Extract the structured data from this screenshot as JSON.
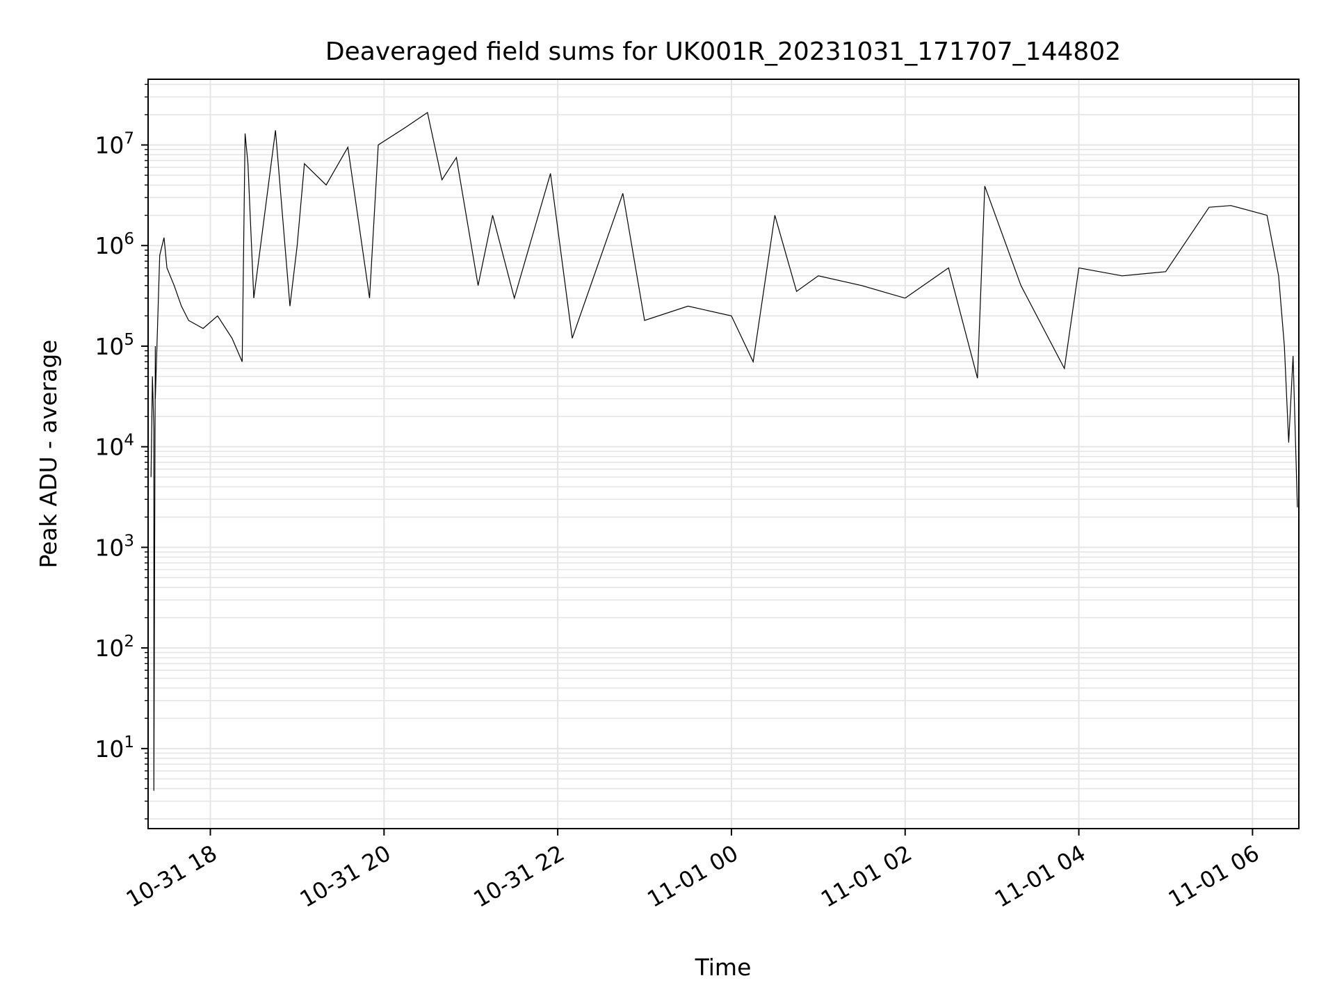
{
  "chart_data": {
    "type": "line",
    "title": "Deaveraged field sums for UK001R_20231031_171707_144802",
    "xlabel": "Time",
    "ylabel": "Peak ADU - average",
    "yscale": "log",
    "xlim": [
      "2023-10-31 17:17",
      "2023-11-01 06:32"
    ],
    "ylim": [
      1.6,
      45000000
    ],
    "x_ticks": [
      "2023-10-31 18:00",
      "2023-10-31 20:00",
      "2023-10-31 22:00",
      "2023-11-01 00:00",
      "2023-11-01 02:00",
      "2023-11-01 04:00",
      "2023-11-01 06:00"
    ],
    "x_tick_labels": [
      "10-31 18",
      "10-31 20",
      "10-31 22",
      "11-01 00",
      "11-01 02",
      "11-01 04",
      "11-01 06"
    ],
    "y_ticks": [
      10,
      100,
      1000,
      10000,
      100000,
      1000000,
      10000000
    ],
    "y_tick_labels": [
      {
        "base": "10",
        "exp": "1"
      },
      {
        "base": "10",
        "exp": "2"
      },
      {
        "base": "10",
        "exp": "3"
      },
      {
        "base": "10",
        "exp": "4"
      },
      {
        "base": "10",
        "exp": "5"
      },
      {
        "base": "10",
        "exp": "6"
      },
      {
        "base": "10",
        "exp": "7"
      }
    ],
    "grid": true,
    "line_color": "#000000",
    "grid_color": "#e5e5e5",
    "series": [
      {
        "points": [
          [
            "2023-10-31 17:19",
            5000
          ],
          [
            "2023-10-31 17:20",
            50000
          ],
          [
            "2023-10-31 17:21",
            15000
          ],
          [
            "2023-10-31 17:21",
            3.8
          ],
          [
            "2023-10-31 17:22",
            100000
          ],
          [
            "2023-10-31 17:22",
            30000
          ],
          [
            "2023-10-31 17:25",
            800000
          ],
          [
            "2023-10-31 17:28",
            1200000
          ],
          [
            "2023-10-31 17:30",
            600000
          ],
          [
            "2023-10-31 17:35",
            400000
          ],
          [
            "2023-10-31 17:40",
            250000
          ],
          [
            "2023-10-31 17:45",
            180000
          ],
          [
            "2023-10-31 17:55",
            150000
          ],
          [
            "2023-10-31 18:05",
            200000
          ],
          [
            "2023-10-31 18:15",
            120000
          ],
          [
            "2023-10-31 18:22",
            70000
          ],
          [
            "2023-10-31 18:24",
            13000000
          ],
          [
            "2023-10-31 18:26",
            6500000
          ],
          [
            "2023-10-31 18:30",
            300000
          ],
          [
            "2023-10-31 18:45",
            14000000
          ],
          [
            "2023-10-31 18:55",
            250000
          ],
          [
            "2023-10-31 19:00",
            1000000
          ],
          [
            "2023-10-31 19:05",
            6500000
          ],
          [
            "2023-10-31 19:20",
            4000000
          ],
          [
            "2023-10-31 19:35",
            9500000
          ],
          [
            "2023-10-31 19:50",
            300000
          ],
          [
            "2023-10-31 19:56",
            10000000
          ],
          [
            "2023-10-31 20:15",
            15000000
          ],
          [
            "2023-10-31 20:30",
            21000000
          ],
          [
            "2023-10-31 20:40",
            4500000
          ],
          [
            "2023-10-31 20:50",
            7500000
          ],
          [
            "2023-10-31 21:05",
            400000
          ],
          [
            "2023-10-31 21:15",
            2000000
          ],
          [
            "2023-10-31 21:30",
            300000
          ],
          [
            "2023-10-31 21:55",
            5200000
          ],
          [
            "2023-10-31 22:10",
            120000
          ],
          [
            "2023-10-31 22:45",
            3300000
          ],
          [
            "2023-10-31 23:00",
            180000
          ],
          [
            "2023-10-31 23:30",
            250000
          ],
          [
            "2023-11-01 00:00",
            200000
          ],
          [
            "2023-11-01 00:15",
            70000
          ],
          [
            "2023-11-01 00:30",
            2000000
          ],
          [
            "2023-11-01 00:45",
            350000
          ],
          [
            "2023-11-01 01:00",
            500000
          ],
          [
            "2023-11-01 01:30",
            400000
          ],
          [
            "2023-11-01 02:00",
            300000
          ],
          [
            "2023-11-01 02:30",
            600000
          ],
          [
            "2023-11-01 02:50",
            48000
          ],
          [
            "2023-11-01 02:55",
            3900000
          ],
          [
            "2023-11-01 03:20",
            400000
          ],
          [
            "2023-11-01 03:50",
            60000
          ],
          [
            "2023-11-01 04:00",
            600000
          ],
          [
            "2023-11-01 04:30",
            500000
          ],
          [
            "2023-11-01 05:00",
            550000
          ],
          [
            "2023-11-01 05:30",
            2400000
          ],
          [
            "2023-11-01 05:45",
            2500000
          ],
          [
            "2023-11-01 06:10",
            2000000
          ],
          [
            "2023-11-01 06:18",
            500000
          ],
          [
            "2023-11-01 06:22",
            100000
          ],
          [
            "2023-11-01 06:25",
            11000
          ],
          [
            "2023-11-01 06:28",
            80000
          ],
          [
            "2023-11-01 06:31",
            2500
          ]
        ]
      }
    ]
  }
}
